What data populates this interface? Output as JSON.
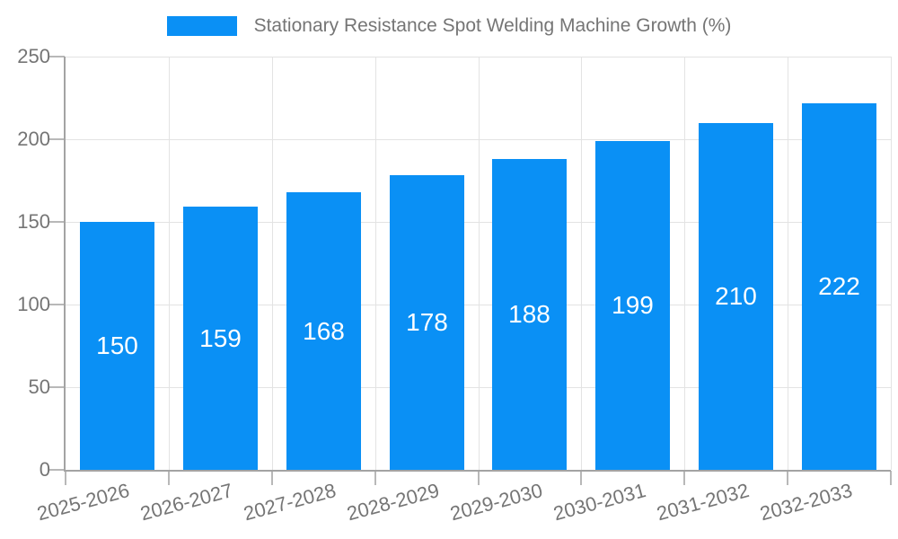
{
  "legend": {
    "label": "Stationary Resistance Spot Welding Machine Growth (%)"
  },
  "chart_data": {
    "type": "bar",
    "title": "Stationary Resistance Spot Welding Machine Growth (%)",
    "categories": [
      "2025-2026",
      "2026-2027",
      "2027-2028",
      "2028-2029",
      "2029-2030",
      "2030-2031",
      "2031-2032",
      "2032-2033"
    ],
    "values": [
      150,
      159,
      168,
      178,
      188,
      199,
      210,
      222
    ],
    "series": [
      {
        "name": "Stationary Resistance Spot Welding Machine Growth (%)",
        "values": [
          150,
          159,
          168,
          178,
          188,
          199,
          210,
          222
        ]
      }
    ],
    "xlabel": "",
    "ylabel": "",
    "ylim": [
      0,
      250
    ],
    "yticks": [
      0,
      50,
      100,
      150,
      200,
      250
    ],
    "grid": true,
    "legend_position": "top",
    "value_labels_position": "inside-center",
    "x_tick_rotation_deg": -15
  },
  "colors": {
    "background": "#ffffff",
    "bar": "#0a90f5",
    "value_text": "#ffffff",
    "axis_text": "#757575",
    "legend_text": "#757575",
    "axis_line": "#a3a3a3",
    "grid": "#e3e3e3",
    "tick": "#b8b8b8"
  }
}
